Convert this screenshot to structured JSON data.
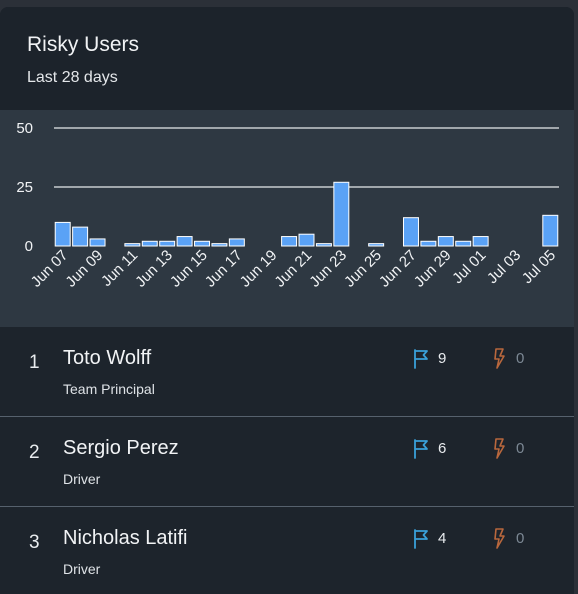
{
  "card": {
    "title": "Risky Users",
    "subtitle": "Last 28 days"
  },
  "chart_data": {
    "type": "bar",
    "categories": [
      "Jun 07",
      "Jun 08",
      "Jun 09",
      "Jun 10",
      "Jun 11",
      "Jun 12",
      "Jun 13",
      "Jun 14",
      "Jun 15",
      "Jun 16",
      "Jun 17",
      "Jun 18",
      "Jun 19",
      "Jun 20",
      "Jun 21",
      "Jun 22",
      "Jun 23",
      "Jun 24",
      "Jun 25",
      "Jun 26",
      "Jun 27",
      "Jun 28",
      "Jun 29",
      "Jun 30",
      "Jul 01",
      "Jul 02",
      "Jul 03",
      "Jul 04",
      "Jul 05"
    ],
    "tick_labels": [
      "Jun 07",
      "Jun 09",
      "Jun 11",
      "Jun 13",
      "Jun 15",
      "Jun 17",
      "Jun 19",
      "Jun 21",
      "Jun 23",
      "Jun 25",
      "Jun 27",
      "Jun 29",
      "Jul 01",
      "Jul 03",
      "Jul 05"
    ],
    "values": [
      10,
      8,
      3,
      0,
      1,
      2,
      2,
      4,
      2,
      1,
      3,
      0,
      0,
      4,
      5,
      1,
      27,
      0,
      1,
      0,
      12,
      2,
      4,
      2,
      4,
      0,
      0,
      0,
      13
    ],
    "yticks": [
      0,
      25,
      50
    ],
    "ylim": [
      0,
      50
    ],
    "grid": true,
    "colors": {
      "bar": "#5aa2f6",
      "bar_edge": "#ffffff",
      "grid": "#e6e9ec",
      "text": "#f1f3f5"
    }
  },
  "users": [
    {
      "rank": "1",
      "name": "Toto Wolff",
      "role": "Team Principal",
      "flags": "9",
      "incidents": "0"
    },
    {
      "rank": "2",
      "name": "Sergio Perez",
      "role": "Driver",
      "flags": "6",
      "incidents": "0"
    },
    {
      "rank": "3",
      "name": "Nicholas Latifi",
      "role": "Driver",
      "flags": "4",
      "incidents": "0"
    }
  ],
  "icons": {
    "flag": "flag-icon",
    "incident": "lightning-icon"
  },
  "accent_colors": {
    "flag": "#3aa0d9",
    "incident": "#b8673d"
  }
}
